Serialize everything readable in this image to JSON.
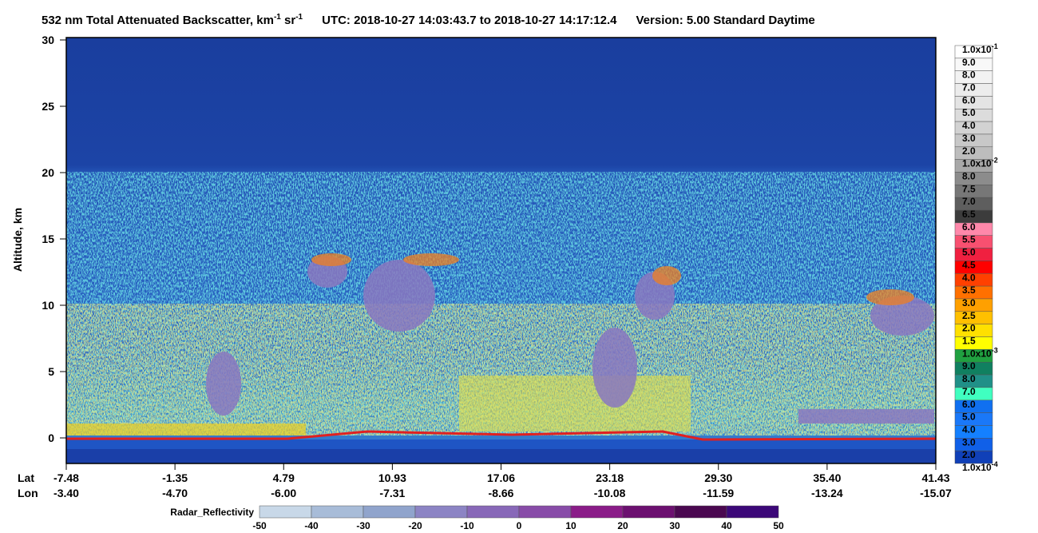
{
  "title": {
    "main": "532 nm Total Attenuated Backscatter, km",
    "exp1": "-1",
    "unit2": " sr",
    "exp2": "-1",
    "utc": "UTC:  2018-10-27 14:03:43.7  to  2018-10-27 14:17:12.4",
    "version": "Version: 5.00  Standard  Daytime"
  },
  "y_axis": {
    "label": "Altitude, km",
    "ticks": [
      "30",
      "25",
      "20",
      "15",
      "10",
      "5",
      "0"
    ]
  },
  "x_axis": {
    "lat_label": "Lat",
    "lon_label": "Lon",
    "lat": [
      "-7.48",
      "-1.35",
      "4.79",
      "10.93",
      "17.06",
      "23.18",
      "29.30",
      "35.40",
      "41.43"
    ],
    "lon": [
      "-3.40",
      "-4.70",
      "-6.00",
      "-7.31",
      "-8.66",
      "-10.08",
      "-11.59",
      "-13.24",
      "-15.07"
    ]
  },
  "colorbar": {
    "labels": [
      {
        "base": "1.0x10",
        "exp": "-1"
      },
      "9.0",
      "8.0",
      "7.0",
      "6.0",
      "5.0",
      "4.0",
      "3.0",
      "2.0",
      {
        "base": "1.0x10",
        "exp": "-2"
      },
      "8.0",
      "7.5",
      "7.0",
      "6.5",
      "6.0",
      "5.5",
      "5.0",
      "4.5",
      "4.0",
      "3.5",
      "3.0",
      "2.5",
      "2.0",
      "1.5",
      {
        "base": "1.0x10",
        "exp": "-3"
      },
      "9.0",
      "8.0",
      "7.0",
      "6.0",
      "5.0",
      "4.0",
      "3.0",
      "2.0",
      {
        "base": "1.0x10",
        "exp": "-4"
      }
    ]
  },
  "radar_colorbar": {
    "label": "Radar_Reflectivity",
    "ticks": [
      "-50",
      "-40",
      "-30",
      "-20",
      "-10",
      "0",
      "10",
      "20",
      "30",
      "40",
      "50"
    ]
  }
}
